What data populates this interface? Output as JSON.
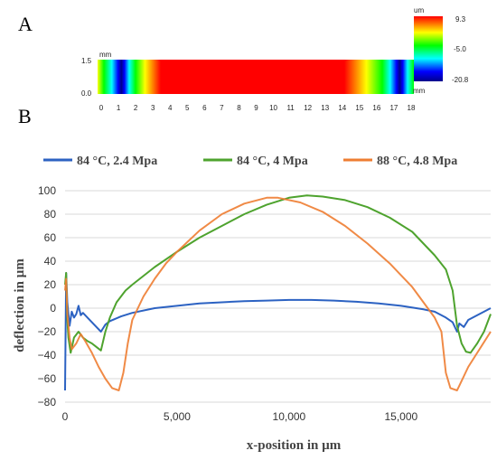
{
  "panels": {
    "a": "A",
    "b": "B"
  },
  "map": {
    "y_unit": "mm",
    "x_unit": "mm",
    "y_ticks": [
      "1.5",
      "0.0"
    ],
    "x_ticks": [
      "0",
      "1",
      "2",
      "3",
      "4",
      "5",
      "6",
      "7",
      "8",
      "9",
      "10",
      "11",
      "12",
      "13",
      "14",
      "15",
      "16",
      "17",
      "18"
    ],
    "colorbar_unit": "um",
    "colorbar_ticks": [
      "9.3",
      "-5.0",
      "-20.8"
    ],
    "colorbar_range": [
      -20.8,
      9.3
    ],
    "colors": [
      "#00008b",
      "#0000ff",
      "#00ffff",
      "#00ff00",
      "#ffff00",
      "#ff0000"
    ]
  },
  "chart_data": {
    "type": "line",
    "title": "",
    "xlabel": "x-position in µm",
    "ylabel": "deflection in µm",
    "xlim": [
      0,
      19000
    ],
    "ylim": [
      -80,
      100
    ],
    "x_ticks": [
      0,
      5000,
      10000,
      15000
    ],
    "x_tick_labels": [
      "0",
      "5,000",
      "10,000",
      "15,000"
    ],
    "y_ticks": [
      -80,
      -60,
      -40,
      -20,
      0,
      20,
      40,
      60,
      80,
      100
    ],
    "y_tick_labels": [
      "−80",
      "−60",
      "−40",
      "−20",
      "0",
      "20",
      "40",
      "60",
      "80",
      "100"
    ],
    "grid": "horizontal",
    "legend_position": "top",
    "series": [
      {
        "name": "84 °C, 2.4 Mpa",
        "color": "#2c62c2",
        "points": [
          [
            0,
            -70
          ],
          [
            50,
            30
          ],
          [
            100,
            5
          ],
          [
            200,
            -15
          ],
          [
            300,
            -3
          ],
          [
            400,
            -8
          ],
          [
            500,
            -5
          ],
          [
            600,
            2
          ],
          [
            700,
            -6
          ],
          [
            800,
            -4
          ],
          [
            1000,
            -8
          ],
          [
            1200,
            -12
          ],
          [
            1400,
            -16
          ],
          [
            1600,
            -20
          ],
          [
            1800,
            -14
          ],
          [
            2000,
            -11
          ],
          [
            2500,
            -7
          ],
          [
            3000,
            -4
          ],
          [
            4000,
            0
          ],
          [
            5000,
            2
          ],
          [
            6000,
            4
          ],
          [
            7000,
            5
          ],
          [
            8000,
            6
          ],
          [
            9000,
            6.5
          ],
          [
            10000,
            7
          ],
          [
            11000,
            7
          ],
          [
            12000,
            6.5
          ],
          [
            13000,
            5.5
          ],
          [
            14000,
            4
          ],
          [
            15000,
            2
          ],
          [
            16000,
            -1
          ],
          [
            16500,
            -3
          ],
          [
            17000,
            -8
          ],
          [
            17300,
            -12
          ],
          [
            17500,
            -20
          ],
          [
            17600,
            -13
          ],
          [
            17800,
            -16
          ],
          [
            18000,
            -10
          ],
          [
            18500,
            -5
          ],
          [
            19000,
            0
          ]
        ]
      },
      {
        "name": "84 °C, 4 Mpa",
        "color": "#4ea32e",
        "points": [
          [
            0,
            20
          ],
          [
            50,
            30
          ],
          [
            100,
            -10
          ],
          [
            150,
            -25
          ],
          [
            250,
            -38
          ],
          [
            400,
            -25
          ],
          [
            600,
            -20
          ],
          [
            800,
            -25
          ],
          [
            1000,
            -28
          ],
          [
            1200,
            -30
          ],
          [
            1400,
            -33
          ],
          [
            1600,
            -36
          ],
          [
            1800,
            -20
          ],
          [
            2000,
            -8
          ],
          [
            2300,
            5
          ],
          [
            2700,
            15
          ],
          [
            3000,
            20
          ],
          [
            4000,
            35
          ],
          [
            5000,
            48
          ],
          [
            6000,
            60
          ],
          [
            7000,
            70
          ],
          [
            8000,
            80
          ],
          [
            9000,
            88
          ],
          [
            10000,
            94
          ],
          [
            10800,
            96
          ],
          [
            11500,
            95
          ],
          [
            12500,
            92
          ],
          [
            13500,
            86
          ],
          [
            14500,
            77
          ],
          [
            15500,
            65
          ],
          [
            16000,
            55
          ],
          [
            16500,
            45
          ],
          [
            17000,
            33
          ],
          [
            17300,
            15
          ],
          [
            17500,
            -15
          ],
          [
            17700,
            -30
          ],
          [
            17900,
            -37
          ],
          [
            18100,
            -38
          ],
          [
            18400,
            -30
          ],
          [
            18700,
            -20
          ],
          [
            19000,
            -5
          ]
        ]
      },
      {
        "name": "88 °C, 4.8 Mpa",
        "color": "#ee7d32",
        "points": [
          [
            0,
            15
          ],
          [
            50,
            25
          ],
          [
            100,
            -5
          ],
          [
            200,
            -25
          ],
          [
            300,
            -35
          ],
          [
            500,
            -30
          ],
          [
            700,
            -22
          ],
          [
            900,
            -28
          ],
          [
            1200,
            -38
          ],
          [
            1500,
            -50
          ],
          [
            1800,
            -60
          ],
          [
            2100,
            -68
          ],
          [
            2400,
            -70
          ],
          [
            2600,
            -55
          ],
          [
            2800,
            -30
          ],
          [
            3000,
            -10
          ],
          [
            3500,
            10
          ],
          [
            4000,
            25
          ],
          [
            4500,
            38
          ],
          [
            5000,
            48
          ],
          [
            6000,
            66
          ],
          [
            7000,
            80
          ],
          [
            8000,
            89
          ],
          [
            9000,
            94
          ],
          [
            9500,
            94
          ],
          [
            10500,
            90
          ],
          [
            11500,
            82
          ],
          [
            12500,
            70
          ],
          [
            13500,
            55
          ],
          [
            14500,
            38
          ],
          [
            15500,
            18
          ],
          [
            16000,
            5
          ],
          [
            16500,
            -8
          ],
          [
            16800,
            -20
          ],
          [
            17000,
            -55
          ],
          [
            17200,
            -68
          ],
          [
            17500,
            -70
          ],
          [
            18000,
            -50
          ],
          [
            18500,
            -35
          ],
          [
            19000,
            -20
          ]
        ]
      }
    ]
  }
}
